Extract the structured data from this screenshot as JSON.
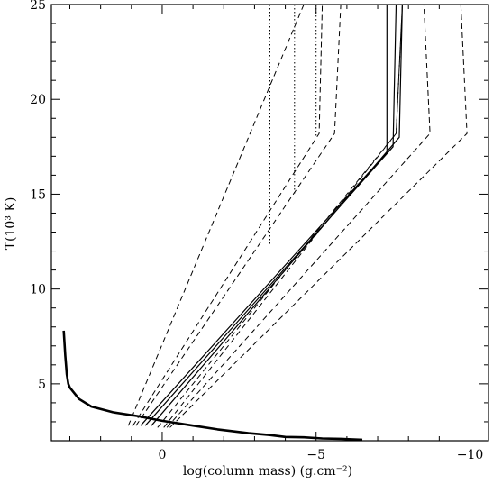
{
  "chart_data": {
    "type": "line",
    "xlabel": "log(column mass) (g.cm⁻²)",
    "ylabel": "T(10³ K)",
    "xlim": [
      3.6,
      -10.6
    ],
    "ylim": [
      2.0,
      25.0
    ],
    "xticks": [
      0,
      -5,
      -10
    ],
    "xtick_labels": [
      "0",
      "−5",
      "−10"
    ],
    "yticks": [
      5,
      10,
      15,
      20,
      25
    ],
    "ytick_labels": [
      "5",
      "10",
      "15",
      "20",
      "25"
    ],
    "grid": false,
    "series": [
      {
        "style": "thick-solid",
        "x": [
          3.2,
          3.15,
          3.1,
          3.05,
          3.0,
          2.7,
          2.3,
          1.6,
          0.8,
          0.0,
          -1.0,
          -1.8,
          -2.8,
          -3.5,
          -4.0,
          -4.6,
          -5.2,
          -5.8,
          -6.5
        ],
        "y": [
          7.8,
          6.5,
          5.5,
          5.0,
          4.8,
          4.2,
          3.8,
          3.5,
          3.3,
          3.05,
          2.8,
          2.6,
          2.4,
          2.3,
          2.2,
          2.18,
          2.12,
          2.1,
          2.05
        ]
      },
      {
        "style": "dotted",
        "x": [
          -3.5,
          -3.5
        ],
        "y": [
          25,
          12.3
        ]
      },
      {
        "style": "dotted",
        "x": [
          -4.3,
          -4.3
        ],
        "y": [
          25,
          15.0
        ]
      },
      {
        "style": "dotted",
        "x": [
          -5.0,
          -5.0
        ],
        "y": [
          25,
          18.0
        ]
      },
      {
        "style": "dashed",
        "x": [
          1.1,
          -4.6
        ],
        "y": [
          2.8,
          25
        ]
      },
      {
        "style": "dashed",
        "x": [
          0.95,
          -5.1,
          -5.2
        ],
        "y": [
          2.8,
          18.2,
          25
        ]
      },
      {
        "style": "dashed",
        "x": [
          0.85,
          -5.6,
          -5.8
        ],
        "y": [
          2.8,
          18.2,
          25
        ]
      },
      {
        "style": "solid",
        "x": [
          0.7,
          -7.3,
          -7.3
        ],
        "y": [
          2.8,
          17.2,
          25
        ]
      },
      {
        "style": "solid",
        "x": [
          0.55,
          -7.5,
          -7.6
        ],
        "y": [
          2.8,
          17.5,
          25
        ]
      },
      {
        "style": "solid",
        "x": [
          0.35,
          -7.7,
          -7.8
        ],
        "y": [
          2.8,
          18.0,
          25
        ]
      },
      {
        "style": "dashed",
        "x": [
          0.15,
          -7.6,
          -7.8
        ],
        "y": [
          2.7,
          18.2,
          25
        ]
      },
      {
        "style": "dashed",
        "x": [
          -0.05,
          -7.6,
          -7.8
        ],
        "y": [
          2.7,
          18.2,
          25
        ]
      },
      {
        "style": "dashed",
        "x": [
          -0.15,
          -8.7,
          -8.5
        ],
        "y": [
          2.7,
          18.2,
          25
        ]
      },
      {
        "style": "dashed",
        "x": [
          -0.25,
          -9.9,
          -9.7
        ],
        "y": [
          2.7,
          18.2,
          25
        ]
      }
    ]
  }
}
